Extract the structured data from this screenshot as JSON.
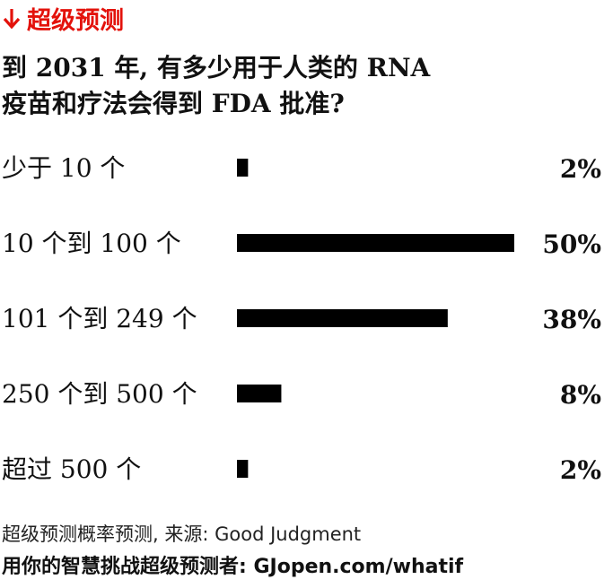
{
  "header": {
    "kicker": "超级预测",
    "title_line1": "到 2031 年, 有多少用于人类的 RNA",
    "title_line2": "疫苗和疗法会得到 FDA 批准?"
  },
  "colors": {
    "accent": "#e3120b",
    "bar": "#000000",
    "text": "#111111"
  },
  "icons": {
    "kicker": "down-arrow-icon"
  },
  "chart_data": {
    "type": "bar",
    "orientation": "horizontal",
    "categories": [
      "少于 10 个",
      "10 个到 100 个",
      "101 个到 249 个",
      "250 个到 500 个",
      "超过 500 个"
    ],
    "values": [
      2,
      50,
      38,
      8,
      2
    ],
    "value_labels": [
      "2%",
      "50%",
      "38%",
      "8%",
      "2%"
    ],
    "unit": "%",
    "xlim": [
      0,
      50
    ],
    "grid": false,
    "legend": "none"
  },
  "footer": {
    "source": "超级预测概率预测, 来源: Good Judgment",
    "cta": "用你的智慧挑战超级预测者: GJopen.com/whatif"
  }
}
